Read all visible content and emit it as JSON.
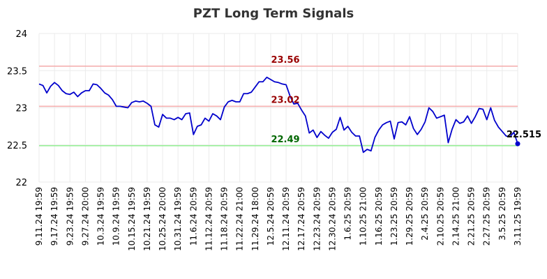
{
  "chart_data": {
    "type": "line",
    "title": "PZT Long Term Signals",
    "xlabel": "",
    "ylabel": "",
    "ylim": [
      22,
      24
    ],
    "yticks": [
      "22",
      "22.5",
      "23",
      "23.5",
      "24"
    ],
    "x_tick_labels": [
      "9.11.24 19:59",
      "9.17.24 19:59",
      "9.23.24 19:59",
      "9.27.24 20:00",
      "10.3.24 19:59",
      "10.9.24 19:59",
      "10.15.24 19:59",
      "10.21.24 19:59",
      "10.25.24 20:00",
      "10.31.24 19:59",
      "11.6.24 20:59",
      "11.12.24 20:59",
      "11.18.24 20:59",
      "11.22.24 21:00",
      "11.29.24 18:00",
      "12.5.24 20:59",
      "12.11.24 20:59",
      "12.17.24 20:59",
      "12.23.24 20:59",
      "12.30.24 20:59",
      "1.6.25 20:59",
      "1.10.25 21:00",
      "1.16.25 20:59",
      "1.23.25 20:59",
      "1.29.25 20:59",
      "2.4.25 20:59",
      "2.10.25 20:59",
      "2.14.25 21:00",
      "2.21.25 20:59",
      "2.27.25 20:59",
      "3.5.25 20:59",
      "3.11.25 19:59"
    ],
    "series": [
      {
        "name": "",
        "color": "#0000cc",
        "values": [
          23.32,
          23.3,
          23.2,
          23.29,
          23.34,
          23.3,
          23.23,
          23.19,
          23.18,
          23.21,
          23.15,
          23.2,
          23.23,
          23.23,
          23.32,
          23.31,
          23.26,
          23.2,
          23.17,
          23.11,
          23.02,
          23.02,
          23.01,
          23.0,
          23.07,
          23.09,
          23.08,
          23.09,
          23.06,
          23.02,
          22.77,
          22.74,
          22.91,
          22.86,
          22.86,
          22.84,
          22.87,
          22.84,
          22.92,
          22.93,
          22.64,
          22.75,
          22.77,
          22.86,
          22.82,
          22.92,
          22.89,
          22.84,
          23.01,
          23.08,
          23.1,
          23.08,
          23.08,
          23.19,
          23.19,
          23.21,
          23.28,
          23.35,
          23.35,
          23.41,
          23.38,
          23.35,
          23.34,
          23.32,
          23.31,
          23.16,
          23.05,
          23.06,
          22.97,
          22.89,
          22.66,
          22.7,
          22.6,
          22.68,
          22.63,
          22.59,
          22.67,
          22.71,
          22.87,
          22.7,
          22.75,
          22.67,
          22.62,
          22.62,
          22.4,
          22.44,
          22.42,
          22.6,
          22.7,
          22.77,
          22.8,
          22.82,
          22.58,
          22.8,
          22.81,
          22.77,
          22.88,
          22.72,
          22.64,
          22.71,
          22.81,
          23.0,
          22.95,
          22.86,
          22.88,
          22.9,
          22.53,
          22.71,
          22.84,
          22.79,
          22.81,
          22.89,
          22.79,
          22.88,
          22.99,
          22.98,
          22.84,
          23.0,
          22.83,
          22.74,
          22.68,
          22.62,
          22.61,
          22.67,
          22.515
        ]
      }
    ],
    "reference_lines": [
      {
        "value": 23.56,
        "label": "23.56",
        "line_color": "#f4aaaa",
        "label_color": "#990000"
      },
      {
        "value": 23.02,
        "label": "23.02",
        "line_color": "#f4aaaa",
        "label_color": "#990000"
      },
      {
        "value": 22.49,
        "label": "22.49",
        "line_color": "#90ee90",
        "label_color": "#006600"
      }
    ],
    "last_value_label": "22.515",
    "grid": true,
    "legend": "none"
  }
}
